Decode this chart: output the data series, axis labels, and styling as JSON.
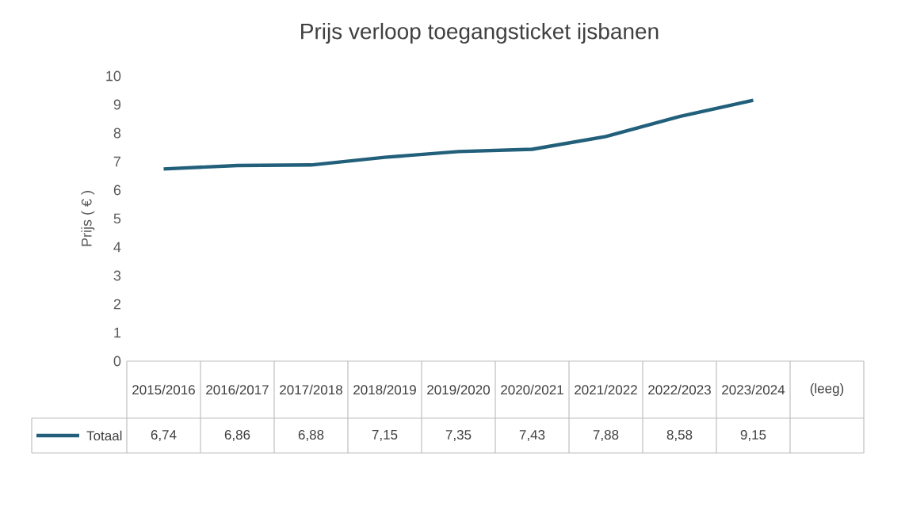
{
  "chart_data": {
    "type": "line",
    "title": "Prijs verloop toegangsticket ijsbanen",
    "ylabel": "Prijs ( € )",
    "categories": [
      "2015/2016",
      "2016/2017",
      "2017/2018",
      "2018/2019",
      "2019/2020",
      "2020/2021",
      "2021/2022",
      "2022/2023",
      "2023/2024",
      "(leeg)"
    ],
    "series": [
      {
        "name": "Totaal",
        "color": "#215f7a",
        "values": [
          6.74,
          6.86,
          6.88,
          7.15,
          7.35,
          7.43,
          7.88,
          8.58,
          9.15,
          null
        ],
        "value_labels": [
          "6,74",
          "6,86",
          "6,88",
          "7,15",
          "7,35",
          "7,43",
          "7,88",
          "8,58",
          "9,15",
          null
        ]
      }
    ],
    "ylim": [
      0,
      10
    ],
    "yticks": [
      0,
      1,
      2,
      3,
      4,
      5,
      6,
      7,
      8,
      9,
      10
    ],
    "legend": "bottom",
    "marker": "none",
    "line_style": "solid"
  }
}
